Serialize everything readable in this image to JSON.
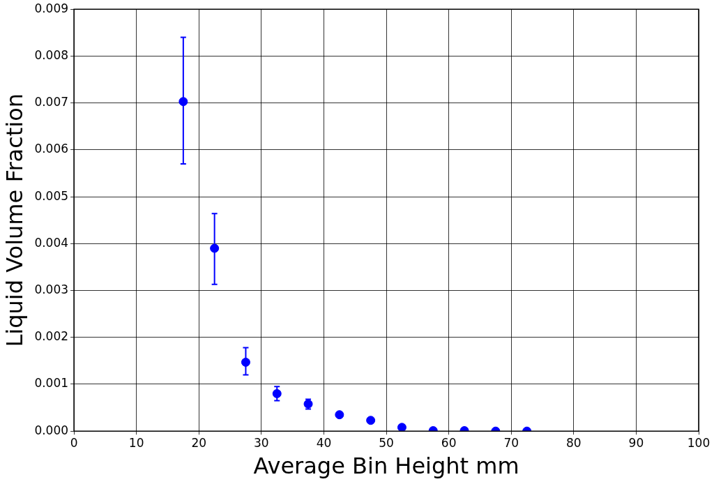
{
  "chart_data": {
    "type": "scatter",
    "xlabel": "Average Bin Height mm",
    "ylabel": "Liquid Volume Fraction",
    "x": [
      17.5,
      22.5,
      27.5,
      32.5,
      37.5,
      42.5,
      47.5,
      52.5,
      57.5,
      62.5,
      67.5,
      72.5
    ],
    "series": [
      {
        "color": "#0000ff",
        "values": [
          0.00703,
          0.0039,
          0.00147,
          0.0008,
          0.00058,
          0.00035,
          0.00023,
          8e-05,
          1e-05,
          1e-05,
          0,
          0
        ],
        "errors": [
          [
            0.0057,
            0.0084
          ],
          [
            0.00313,
            0.00464
          ],
          [
            0.0012,
            0.00178
          ],
          [
            0.00065,
            0.00095
          ],
          [
            0.00047,
            0.00068
          ],
          null,
          null,
          null,
          null,
          null,
          null,
          null
        ]
      }
    ],
    "xlim": [
      0,
      100
    ],
    "xticks": [
      0,
      10,
      20,
      30,
      40,
      50,
      60,
      70,
      80,
      90,
      100
    ],
    "ylim": [
      0,
      0.009
    ],
    "yticks": [
      {
        "value": 0,
        "label": "0.000"
      },
      {
        "value": 0.001,
        "label": "0.001"
      },
      {
        "value": 0.002,
        "label": "0.002"
      },
      {
        "value": 0.003,
        "label": "0.003"
      },
      {
        "value": 0.004,
        "label": "0.004"
      },
      {
        "value": 0.005,
        "label": "0.005"
      },
      {
        "value": 0.006,
        "label": "0.006"
      },
      {
        "value": 0.007,
        "label": "0.007"
      },
      {
        "value": 0.008,
        "label": "0.008"
      },
      {
        "value": 0.009,
        "label": "0.009"
      }
    ],
    "grid": true,
    "marker": "circle",
    "legend": false
  }
}
